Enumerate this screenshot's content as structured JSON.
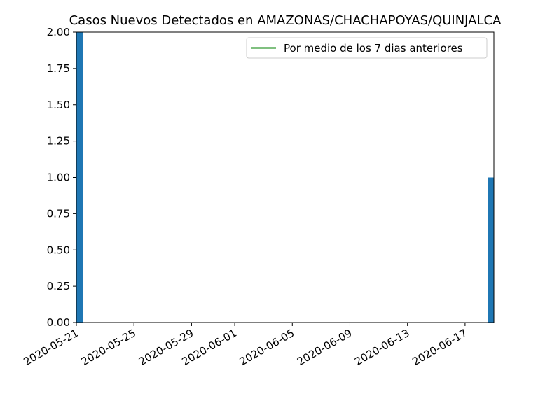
{
  "chart_data": {
    "type": "bar",
    "title": "Casos Nuevos Detectados en AMAZONAS/CHACHAPOYAS/QUINJALCA",
    "xlabel": "",
    "ylabel": "",
    "x_tick_labels": [
      "2020-05-21",
      "2020-05-25",
      "2020-05-29",
      "2020-06-01",
      "2020-06-05",
      "2020-06-09",
      "2020-06-13",
      "2020-06-17"
    ],
    "y_tick_labels": [
      "0.00",
      "0.25",
      "0.50",
      "0.75",
      "1.00",
      "1.25",
      "1.50",
      "1.75",
      "2.00"
    ],
    "ylim": [
      0,
      2.0
    ],
    "xlim": [
      "2020-05-21",
      "2020-06-19"
    ],
    "grid": false,
    "legend_placement": "upper right",
    "bars": [
      {
        "date": "2020-05-21",
        "value": 2
      },
      {
        "date": "2020-06-19",
        "value": 1
      }
    ],
    "series": [
      {
        "name": "Por medio de los 7 dias anteriores",
        "kind": "line",
        "color": "#008000"
      }
    ],
    "colors": {
      "bar": "#1f77b4",
      "moving_average": "#008000"
    }
  }
}
